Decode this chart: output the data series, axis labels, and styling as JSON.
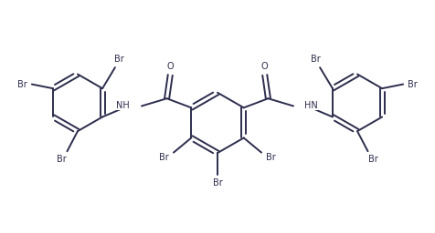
{
  "bg_color": "#ffffff",
  "line_color": "#2d2d4e",
  "bond_width": 1.4,
  "text_color": "#2d2d4e",
  "font_size": 7.0,
  "xlim": [
    0,
    10
  ],
  "ylim": [
    0,
    5.5
  ]
}
